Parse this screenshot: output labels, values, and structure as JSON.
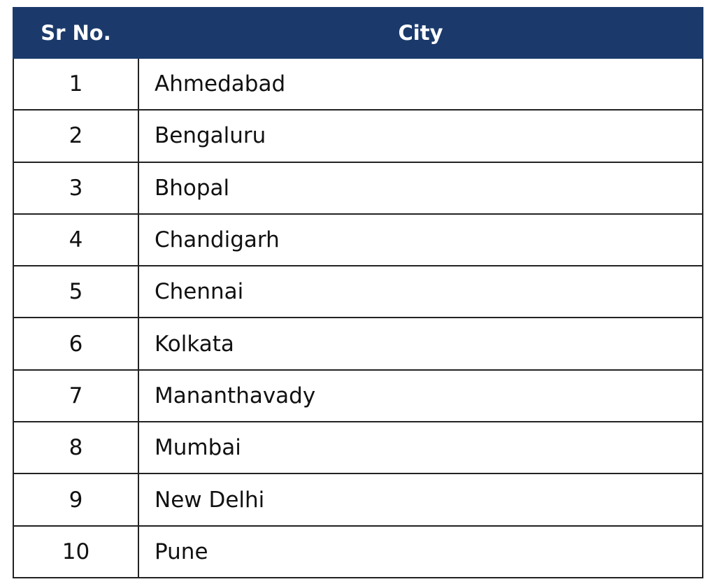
{
  "table": {
    "columns": [
      "Sr No.",
      "City"
    ],
    "rows": [
      [
        1,
        "Ahmedabad"
      ],
      [
        2,
        "Bengaluru"
      ],
      [
        3,
        "Bhopal"
      ],
      [
        4,
        "Chandigarh"
      ],
      [
        5,
        "Chennai"
      ],
      [
        6,
        "Kolkata"
      ],
      [
        7,
        "Mananthavady"
      ],
      [
        8,
        "Mumbai"
      ],
      [
        9,
        "New Delhi"
      ],
      [
        10,
        "Pune"
      ]
    ]
  }
}
